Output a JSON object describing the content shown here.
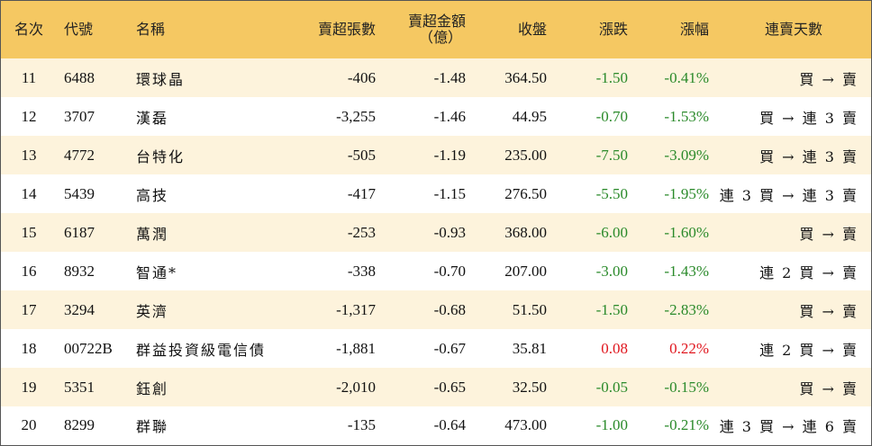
{
  "table": {
    "headers": {
      "rank": "名次",
      "code": "代號",
      "name": "名稱",
      "net_sell_lots": "賣超張數",
      "net_sell_amount_line1": "賣超金額",
      "net_sell_amount_line2": "（億）",
      "close": "收盤",
      "change": "漲跌",
      "change_pct": "漲幅",
      "streak": "連賣天數"
    },
    "rows": [
      {
        "rank": "11",
        "code": "6488",
        "name": "環球晶",
        "lots": "-406",
        "amount": "-1.48",
        "close": "364.50",
        "change": "-1.50",
        "pct": "-0.41%",
        "streak": "買 → 賣",
        "dir": "neg"
      },
      {
        "rank": "12",
        "code": "3707",
        "name": "漢磊",
        "lots": "-3,255",
        "amount": "-1.46",
        "close": "44.95",
        "change": "-0.70",
        "pct": "-1.53%",
        "streak": "買 → 連 3 賣",
        "dir": "neg"
      },
      {
        "rank": "13",
        "code": "4772",
        "name": "台特化",
        "lots": "-505",
        "amount": "-1.19",
        "close": "235.00",
        "change": "-7.50",
        "pct": "-3.09%",
        "streak": "買 → 連 3 賣",
        "dir": "neg"
      },
      {
        "rank": "14",
        "code": "5439",
        "name": "高技",
        "lots": "-417",
        "amount": "-1.15",
        "close": "276.50",
        "change": "-5.50",
        "pct": "-1.95%",
        "streak": "連 3 買 → 連 3 賣",
        "dir": "neg"
      },
      {
        "rank": "15",
        "code": "6187",
        "name": "萬潤",
        "lots": "-253",
        "amount": "-0.93",
        "close": "368.00",
        "change": "-6.00",
        "pct": "-1.60%",
        "streak": "買 → 賣",
        "dir": "neg"
      },
      {
        "rank": "16",
        "code": "8932",
        "name": "智通*",
        "lots": "-338",
        "amount": "-0.70",
        "close": "207.00",
        "change": "-3.00",
        "pct": "-1.43%",
        "streak": "連 2 買 → 賣",
        "dir": "neg"
      },
      {
        "rank": "17",
        "code": "3294",
        "name": "英濟",
        "lots": "-1,317",
        "amount": "-0.68",
        "close": "51.50",
        "change": "-1.50",
        "pct": "-2.83%",
        "streak": "買 → 賣",
        "dir": "neg"
      },
      {
        "rank": "18",
        "code": "00722B",
        "name": "群益投資級電信債",
        "lots": "-1,881",
        "amount": "-0.67",
        "close": "35.81",
        "change": "0.08",
        "pct": "0.22%",
        "streak": "連 2 買 → 賣",
        "dir": "pos"
      },
      {
        "rank": "19",
        "code": "5351",
        "name": "鈺創",
        "lots": "-2,010",
        "amount": "-0.65",
        "close": "32.50",
        "change": "-0.05",
        "pct": "-0.15%",
        "streak": "買 → 賣",
        "dir": "neg"
      },
      {
        "rank": "20",
        "code": "8299",
        "name": "群聯",
        "lots": "-135",
        "amount": "-0.64",
        "close": "473.00",
        "change": "-1.00",
        "pct": "-0.21%",
        "streak": "連 3 買 → 連 6 賣",
        "dir": "neg"
      }
    ],
    "colors": {
      "header_bg": "#f5c862",
      "row_alt_bg": "#fdf3dc",
      "up": "#e0161e",
      "down": "#2a8a2a"
    }
  }
}
